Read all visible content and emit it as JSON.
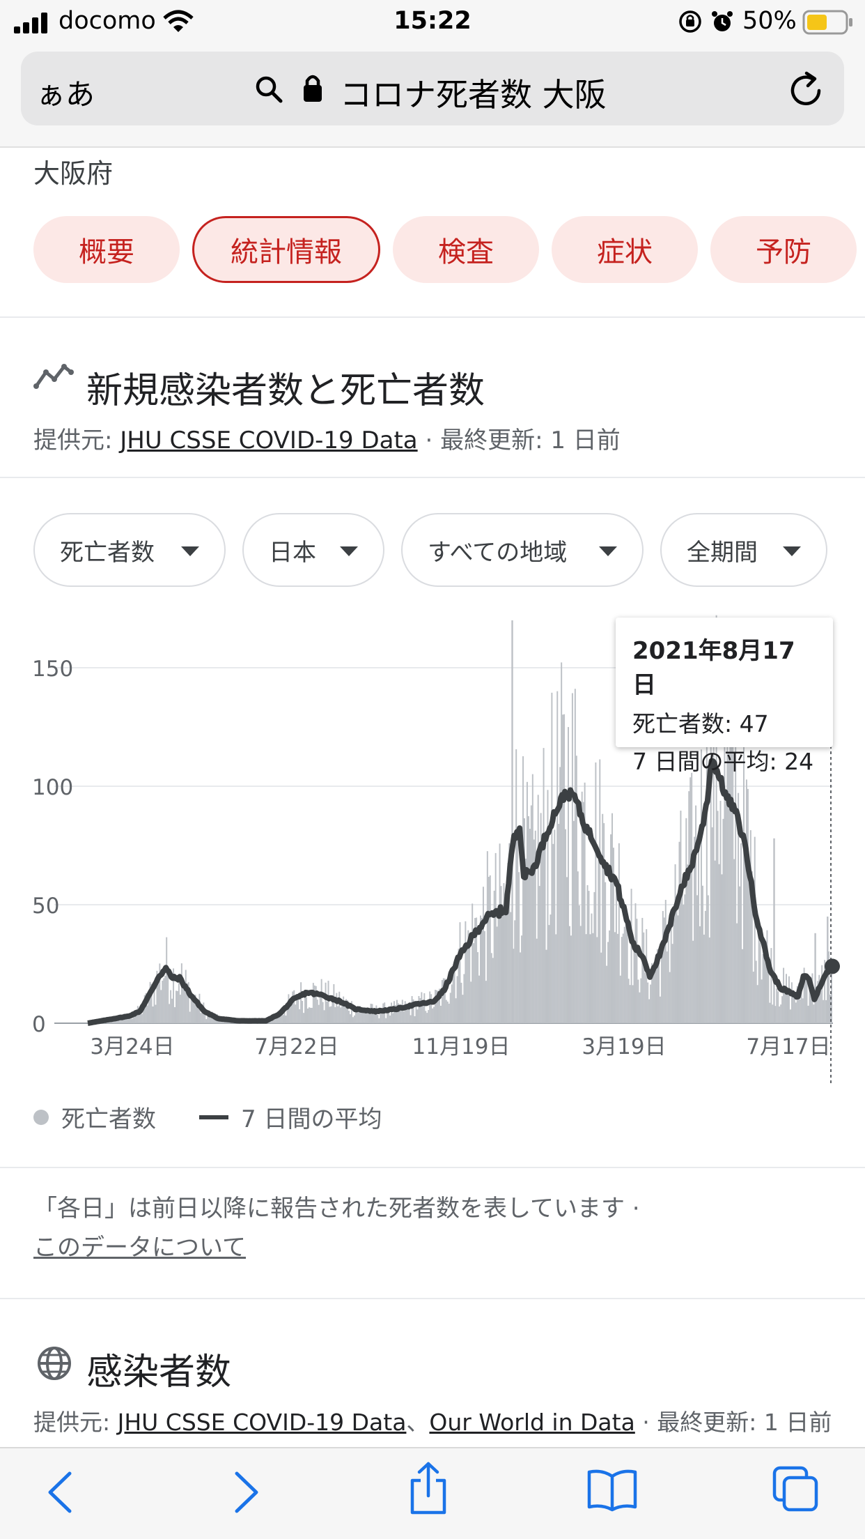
{
  "status_bar": {
    "carrier": "docomo",
    "time": "15:22",
    "battery": "50%"
  },
  "browser": {
    "aa_label": "ぁあ",
    "url_text": "コロナ死者数 大阪"
  },
  "page": {
    "region": "大阪府",
    "chips": [
      {
        "label": "概要",
        "active": false
      },
      {
        "label": "統計情報",
        "active": true
      },
      {
        "label": "検査",
        "active": false
      },
      {
        "label": "症状",
        "active": false
      },
      {
        "label": "予防",
        "active": false
      }
    ],
    "section_title": "新規感染者数と死亡者数",
    "source_prefix": "提供元: ",
    "source_link": "JHU CSSE COVID-19 Data",
    "updated": " · 最終更新: 1 日前",
    "dropdowns": [
      "死亡者数",
      "日本",
      "すべての地域",
      "全期間"
    ],
    "legend_daily": "死亡者数",
    "legend_avg": "7 日間の平均",
    "note": "「各日」は前日以降に報告された死者数を表しています ·",
    "note_link": "このデータについて",
    "section2_title": "感染者数",
    "section2_prefix": "提供元: ",
    "section2_link1": "JHU CSSE COVID-19 Data",
    "section2_sep": "、",
    "section2_link2": "Our World in Data",
    "section2_updated": " · 最終更新: 1 日前"
  },
  "tooltip": {
    "date": "2021年8月17日",
    "line1": "死亡者数: 47",
    "line2": "7 日間の平均: 24"
  },
  "colors": {
    "accent": "#c5221f",
    "chip_bg": "#fce8e6",
    "bar": "#bdc1c6",
    "avg_line": "#3c4043",
    "ios_blue": "#1a73e8"
  },
  "chart_data": {
    "type": "bar",
    "series": [
      {
        "name": "死亡者数",
        "type": "bar"
      },
      {
        "name": "7 日間の平均",
        "type": "line"
      }
    ],
    "x_ticks": [
      "3月24日",
      "7月22日",
      "11月19日",
      "3月19日",
      "7月17日"
    ],
    "y_ticks": [
      0,
      50,
      100,
      150
    ],
    "ylim": [
      0,
      165
    ],
    "avg_keypoints": [
      [
        0,
        0
      ],
      [
        10,
        1
      ],
      [
        20,
        2
      ],
      [
        30,
        3
      ],
      [
        38,
        5
      ],
      [
        45,
        12
      ],
      [
        52,
        20
      ],
      [
        57,
        23
      ],
      [
        62,
        19
      ],
      [
        67,
        19
      ],
      [
        75,
        12
      ],
      [
        85,
        5
      ],
      [
        95,
        2
      ],
      [
        110,
        1
      ],
      [
        130,
        1
      ],
      [
        140,
        4
      ],
      [
        150,
        10
      ],
      [
        160,
        13
      ],
      [
        170,
        12
      ],
      [
        185,
        9
      ],
      [
        195,
        6
      ],
      [
        210,
        5
      ],
      [
        225,
        6
      ],
      [
        240,
        8
      ],
      [
        252,
        9
      ],
      [
        260,
        14
      ],
      [
        270,
        27
      ],
      [
        280,
        36
      ],
      [
        290,
        44
      ],
      [
        300,
        47
      ],
      [
        305,
        48
      ],
      [
        310,
        76
      ],
      [
        315,
        84
      ],
      [
        318,
        62
      ],
      [
        325,
        65
      ],
      [
        332,
        76
      ],
      [
        340,
        88
      ],
      [
        348,
        97
      ],
      [
        355,
        96
      ],
      [
        362,
        84
      ],
      [
        370,
        76
      ],
      [
        378,
        66
      ],
      [
        385,
        60
      ],
      [
        392,
        46
      ],
      [
        398,
        33
      ],
      [
        405,
        28
      ],
      [
        410,
        20
      ],
      [
        418,
        30
      ],
      [
        425,
        42
      ],
      [
        432,
        56
      ],
      [
        440,
        66
      ],
      [
        448,
        82
      ],
      [
        452,
        95
      ],
      [
        455,
        112
      ],
      [
        460,
        105
      ],
      [
        466,
        95
      ],
      [
        472,
        90
      ],
      [
        480,
        74
      ],
      [
        486,
        50
      ],
      [
        492,
        35
      ],
      [
        498,
        22
      ],
      [
        505,
        15
      ],
      [
        512,
        13
      ],
      [
        518,
        11
      ],
      [
        522,
        20
      ],
      [
        526,
        19
      ],
      [
        530,
        10
      ],
      [
        535,
        17
      ],
      [
        540,
        22
      ],
      [
        542,
        24
      ]
    ],
    "spikes": [
      [
        309,
        170
      ],
      [
        500,
        78
      ],
      [
        530,
        38
      ],
      [
        539,
        45
      ]
    ]
  }
}
